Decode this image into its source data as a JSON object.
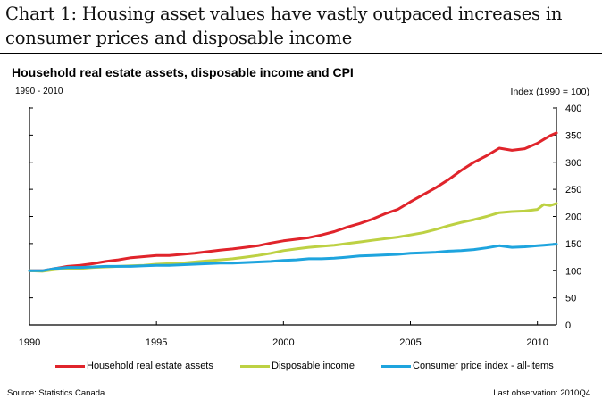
{
  "page": {
    "heading_line1": "Chart 1: Housing asset values have vastly outpaced increases in",
    "heading_line2": "consumer prices and disposable income",
    "source": "Source: Statistics Canada",
    "last_observation": "Last observation: 2010Q4"
  },
  "chart_data": {
    "type": "line",
    "title": "Household real estate assets, disposable income and CPI",
    "subtitle": "1990 - 2010",
    "ylabel": "Index (1990 = 100)",
    "xlabel": "",
    "xlim": [
      1990,
      2010.75
    ],
    "ylim": [
      0,
      400
    ],
    "x_ticks": [
      1990,
      1995,
      2000,
      2005,
      2010
    ],
    "x_tick_labels": [
      "1990",
      "1995",
      "2000",
      "2005",
      "2010"
    ],
    "y_ticks": [
      0,
      50,
      100,
      150,
      200,
      250,
      300,
      350,
      400
    ],
    "y_tick_labels": [
      "0",
      "50",
      "100",
      "150",
      "200",
      "250",
      "300",
      "350",
      "400"
    ],
    "y_axis_side": "right",
    "grid": false,
    "legend_position": "bottom",
    "x": [
      1990,
      1990.5,
      1991,
      1991.5,
      1992,
      1992.5,
      1993,
      1993.5,
      1994,
      1994.5,
      1995,
      1995.5,
      1996,
      1996.5,
      1997,
      1997.5,
      1998,
      1998.5,
      1999,
      1999.5,
      2000,
      2000.5,
      2001,
      2001.5,
      2002,
      2002.5,
      2003,
      2003.5,
      2004,
      2004.5,
      2005,
      2005.5,
      2006,
      2006.5,
      2007,
      2007.5,
      2008,
      2008.5,
      2009,
      2009.5,
      2010,
      2010.25,
      2010.5,
      2010.75
    ],
    "series": [
      {
        "name": "Household real estate assets",
        "color": "#e0242b",
        "values": [
          100,
          100,
          104,
          108,
          110,
          113,
          117,
          120,
          124,
          126,
          128,
          128,
          130,
          132,
          135,
          138,
          140,
          143,
          146,
          151,
          155,
          158,
          161,
          166,
          172,
          180,
          187,
          195,
          205,
          213,
          227,
          240,
          253,
          268,
          285,
          300,
          312,
          326,
          322,
          325,
          335,
          342,
          349,
          354
        ]
      },
      {
        "name": "Disposable income",
        "color": "#bdd143",
        "values": [
          100,
          99,
          102,
          104,
          104,
          106,
          107,
          108,
          109,
          110,
          112,
          113,
          114,
          116,
          118,
          120,
          122,
          125,
          128,
          132,
          137,
          140,
          143,
          145,
          147,
          150,
          153,
          156,
          159,
          162,
          166,
          170,
          176,
          183,
          189,
          194,
          200,
          207,
          209,
          210,
          213,
          222,
          220,
          224
        ]
      },
      {
        "name": "Consumer price index - all-items",
        "color": "#1ea4de",
        "values": [
          100,
          100,
          104,
          106,
          106,
          107,
          108,
          108,
          108,
          109,
          110,
          110,
          111,
          112,
          113,
          114,
          114,
          115,
          116,
          117,
          119,
          120,
          122,
          122,
          123,
          125,
          127,
          128,
          129,
          130,
          132,
          133,
          134,
          136,
          137,
          139,
          142,
          146,
          143,
          144,
          146,
          147,
          148,
          149
        ]
      }
    ]
  }
}
